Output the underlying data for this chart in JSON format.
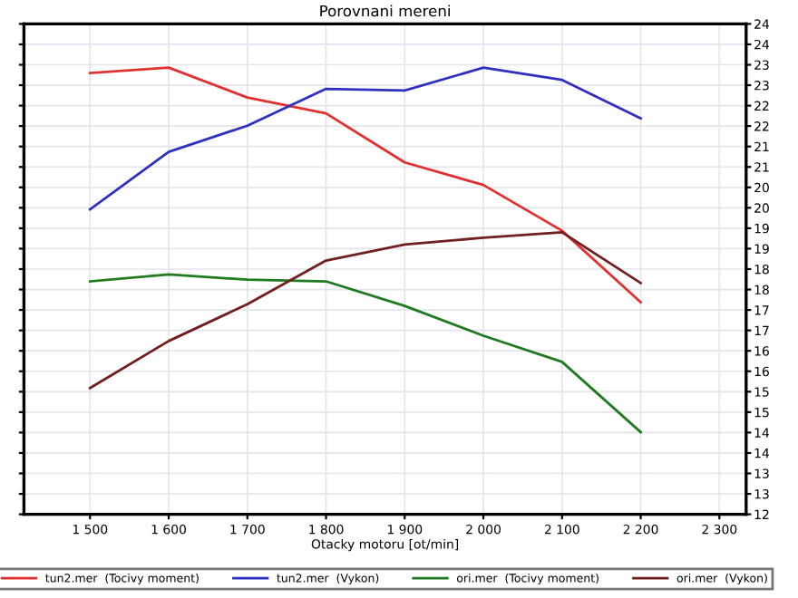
{
  "chart_data": {
    "type": "line",
    "title": "Porovnani mereni",
    "xlabel": "Otacky motoru [ot/min]",
    "x": [
      1500,
      1600,
      1700,
      1800,
      1900,
      2000,
      2100,
      2200
    ],
    "series": [
      {
        "name": "tun2.mer  (Tocivy moment)",
        "color": "#e03030",
        "values": [
          22.8,
          22.93,
          22.2,
          21.81,
          20.61,
          20.06,
          18.94,
          17.19
        ]
      },
      {
        "name": "tun2.mer  (Vykon)",
        "color": "#3030c0",
        "values": [
          19.46,
          20.87,
          21.51,
          22.41,
          22.37,
          22.93,
          22.63,
          21.69
        ]
      },
      {
        "name": "ori.mer  (Tocivy moment)",
        "color": "#207a20",
        "values": [
          17.7,
          17.87,
          17.74,
          17.7,
          17.1,
          16.37,
          15.73,
          14.01
        ]
      },
      {
        "name": "ori.mer  (Vykon)",
        "color": "#702020",
        "values": [
          15.09,
          16.24,
          17.14,
          18.21,
          18.6,
          18.77,
          18.9,
          17.66
        ]
      }
    ],
    "xlim": [
      1416,
      2334
    ],
    "xticks": [
      {
        "value": 1500,
        "label": "1 500"
      },
      {
        "value": 1600,
        "label": "1 600"
      },
      {
        "value": 1700,
        "label": "1 700"
      },
      {
        "value": 1800,
        "label": "1 800"
      },
      {
        "value": 1900,
        "label": "1 900"
      },
      {
        "value": 2000,
        "label": "2 000"
      },
      {
        "value": 2100,
        "label": "2 100"
      },
      {
        "value": 2200,
        "label": "2 200"
      },
      {
        "value": 2300,
        "label": "2 300"
      }
    ],
    "ylim": [
      12,
      24
    ],
    "yticks": [
      12,
      {
        "value": 12.5,
        "label": "13"
      },
      13,
      {
        "value": 13.5,
        "label": "14"
      },
      14,
      {
        "value": 14.5,
        "label": "15"
      },
      15,
      {
        "value": 15.5,
        "label": "16"
      },
      16,
      {
        "value": 16.5,
        "label": "17"
      },
      17,
      {
        "value": 17.5,
        "label": "18"
      },
      18,
      {
        "value": 18.5,
        "label": "19"
      },
      19,
      {
        "value": 19.5,
        "label": "20"
      },
      20,
      {
        "value": 20.5,
        "label": "21"
      },
      21,
      {
        "value": 21.5,
        "label": "22"
      },
      22,
      {
        "value": 22.5,
        "label": "23"
      },
      23,
      {
        "value": 23.5,
        "label": "24"
      },
      24
    ],
    "grid": true,
    "legend": "bottom",
    "marker": "none",
    "line_style": "solid"
  }
}
